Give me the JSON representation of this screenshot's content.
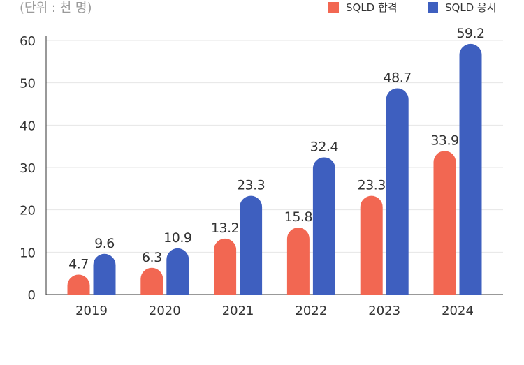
{
  "unit_label": "(단위 : 천 명)",
  "chart_data": {
    "type": "bar",
    "title": "",
    "xlabel": "",
    "ylabel": "",
    "categories": [
      "2019",
      "2020",
      "2021",
      "2022",
      "2023",
      "2024"
    ],
    "series": [
      {
        "name": "SQLD 합격",
        "color": "#f26752",
        "values": [
          4.7,
          6.3,
          13.2,
          15.8,
          23.3,
          33.9
        ]
      },
      {
        "name": "SQLD 응시",
        "color": "#3e5fbf",
        "values": [
          9.6,
          10.9,
          23.3,
          32.4,
          48.7,
          59.2
        ]
      }
    ],
    "ylim": [
      0,
      60
    ],
    "yticks": [
      "0",
      "10",
      "20",
      "30",
      "40",
      "50",
      "60"
    ],
    "grid": true,
    "legend_position": "top-right"
  }
}
